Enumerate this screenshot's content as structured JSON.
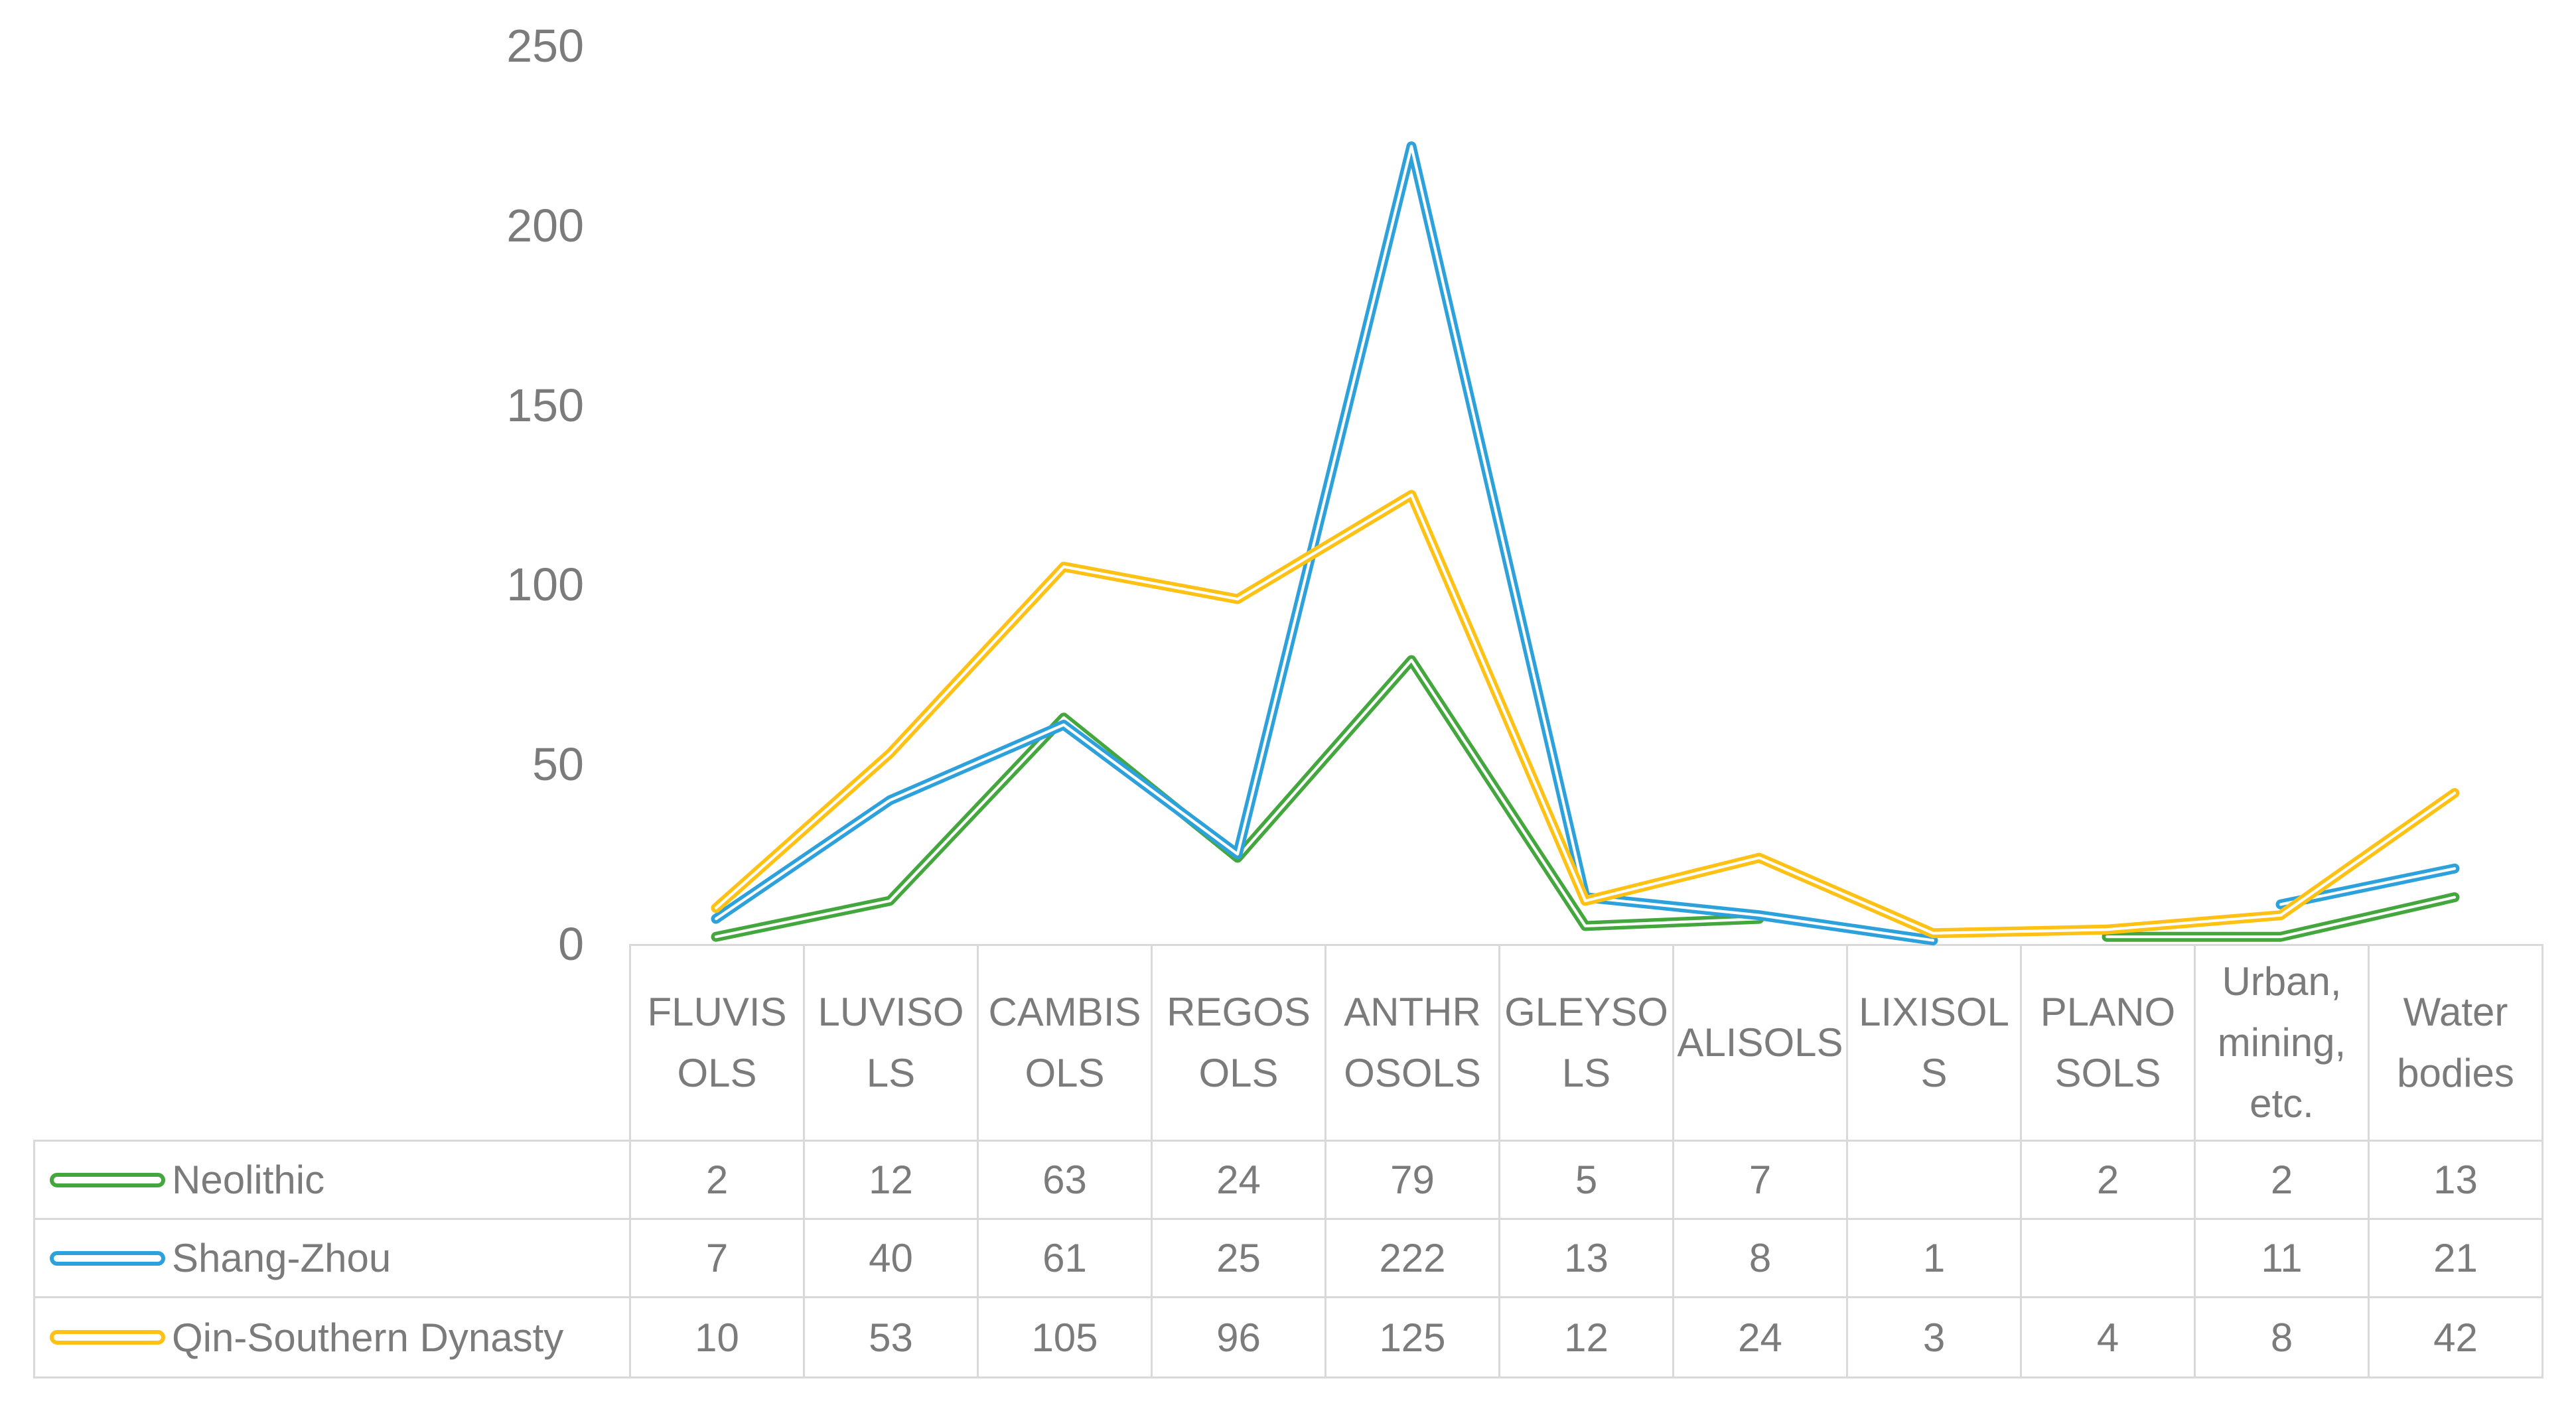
{
  "chart_data": {
    "type": "line",
    "title": "",
    "xlabel": "",
    "ylabel": "",
    "ylim": [
      0,
      250
    ],
    "y_ticks": [
      "0",
      "50",
      "100",
      "150",
      "200",
      "250"
    ],
    "grid": false,
    "line_style": "thick colored stroke with white core, rounded caps",
    "legend_position": "left column of attached data table",
    "categories": [
      "FLUVISOLS",
      "LUVISOLS",
      "CAMBISOLS",
      "REGOSOLS",
      "ANTHROSOLS",
      "GLEYSOLS",
      "ALISOLS",
      "LIXISOLS",
      "PLANOSOLS",
      "Urban, mining, etc.",
      "Water bodies"
    ],
    "category_display_lines": [
      [
        "FLUVIS",
        "OLS"
      ],
      [
        "LUVISO",
        "LS"
      ],
      [
        "CAMBIS",
        "OLS"
      ],
      [
        "REGOS",
        "OLS"
      ],
      [
        "ANTHR",
        "OSOLS"
      ],
      [
        "GLEYSO",
        "LS"
      ],
      [
        "ALISOLS"
      ],
      [
        "LIXISOL",
        "S"
      ],
      [
        "PLANO",
        "SOLS"
      ],
      [
        "Urban,",
        "mining,",
        "etc."
      ],
      [
        "Water",
        "bodies"
      ]
    ],
    "series": [
      {
        "name": "Neolithic",
        "color": "#44A73E",
        "values": [
          2,
          12,
          63,
          24,
          79,
          5,
          7,
          null,
          2,
          2,
          13
        ]
      },
      {
        "name": "Shang-Zhou",
        "color": "#2DA1DB",
        "values": [
          7,
          40,
          61,
          25,
          222,
          13,
          8,
          1,
          null,
          11,
          21
        ]
      },
      {
        "name": "Qin-Southern Dynasty",
        "color": "#FFC113",
        "values": [
          10,
          53,
          105,
          96,
          125,
          12,
          24,
          3,
          4,
          8,
          42
        ]
      }
    ]
  },
  "table": {
    "rows": [
      {
        "name": "Neolithic",
        "cells": [
          "2",
          "12",
          "63",
          "24",
          "79",
          "5",
          "7",
          "",
          "2",
          "2",
          "13"
        ]
      },
      {
        "name": "Shang-Zhou",
        "cells": [
          "7",
          "40",
          "61",
          "25",
          "222",
          "13",
          "8",
          "1",
          "",
          "11",
          "21"
        ]
      },
      {
        "name": "Qin-Southern Dynasty",
        "cells": [
          "10",
          "53",
          "105",
          "96",
          "125",
          "12",
          "24",
          "3",
          "4",
          "8",
          "42"
        ]
      }
    ]
  },
  "colors": {
    "text_gray": "#7B7B7B",
    "table_border": "#D9D9D9",
    "background": "#FFFFFF"
  }
}
